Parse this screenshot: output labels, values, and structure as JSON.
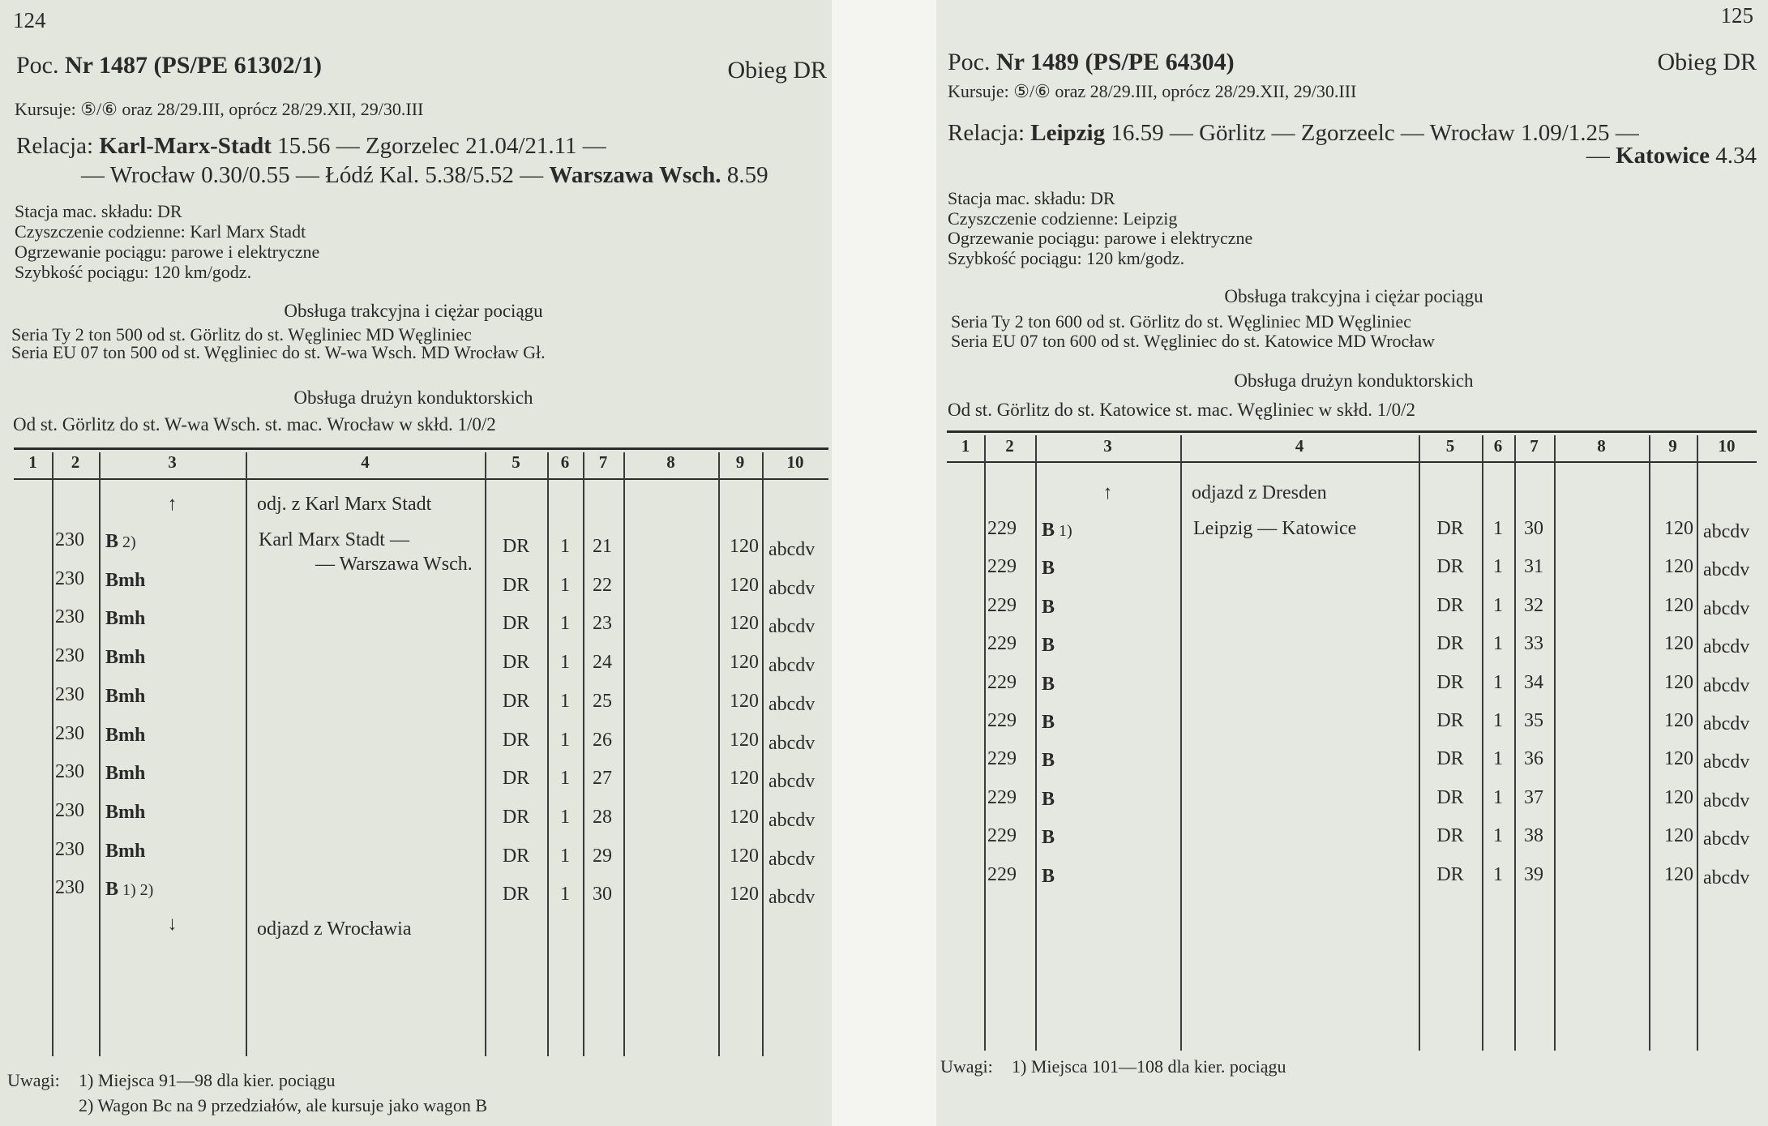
{
  "left": {
    "page_number": "124",
    "title_prefix": "Poc.",
    "title_bold": "Nr 1487 (PS/PE 61302/1)",
    "obieg": "Obieg DR",
    "kursuje": "Kursuje: ⑤/⑥ oraz 28/29.III, oprócz 28/29.XII, 29/30.III",
    "relacja_lines": [
      [
        {
          "t": "Relacja: ",
          "b": false
        },
        {
          "t": "Karl-Marx-Stadt",
          "b": true
        },
        {
          "t": " 15.56 — Zgorzelec ",
          "b": false
        },
        {
          "t": "21.04/21.11 —",
          "b": false
        }
      ],
      [
        {
          "t": "— Wrocław 0.30/0.55 — Łódź Kal. 5.38/5.52 — ",
          "b": false
        },
        {
          "t": "Warszawa Wsch.",
          "b": true
        },
        {
          "t": " 8.59",
          "b": false
        }
      ]
    ],
    "info": [
      "Stacja mac. składu: DR",
      "Czyszczenie codzienne: Karl Marx Stadt",
      "Ogrzewanie pociągu: parowe i elektryczne",
      "Szybkość pociągu: 120 km/godz."
    ],
    "traction_heading": "Obsługa trakcyjna i ciężar pociągu",
    "traction": [
      "Seria Ty 2 ton 500 od st. Görlitz do st. Węgliniec MD Węgliniec",
      "Seria EU 07 ton 500 od st. Węgliniec do st. W-wa Wsch. MD Wrocław Gł."
    ],
    "crew_heading": "Obsługa drużyn konduktorskich",
    "crew": "Od st. Görlitz do st. W-wa Wsch. st. mac. Wrocław w skłd. 1/0/2",
    "table": {
      "headers": [
        "1",
        "2",
        "3",
        "4",
        "5",
        "6",
        "7",
        "8",
        "9",
        "10"
      ],
      "start": {
        "arrow": "↑",
        "text": "odj. z Karl Marx Stadt"
      },
      "rows": [
        {
          "c2": "230",
          "c3": "B",
          "c3n": "2)",
          "c4": [
            "Karl Marx Stadt —",
            "— Warszawa Wsch."
          ],
          "c5": "DR",
          "c6": "1",
          "c7": "21",
          "c9": "120",
          "c10": "abcdv"
        },
        {
          "c2": "230",
          "c3": "Bmh",
          "c3n": "",
          "c4": [],
          "c5": "DR",
          "c6": "1",
          "c7": "22",
          "c9": "120",
          "c10": "abcdv"
        },
        {
          "c2": "230",
          "c3": "Bmh",
          "c3n": "",
          "c4": [],
          "c5": "DR",
          "c6": "1",
          "c7": "23",
          "c9": "120",
          "c10": "abcdv"
        },
        {
          "c2": "230",
          "c3": "Bmh",
          "c3n": "",
          "c4": [],
          "c5": "DR",
          "c6": "1",
          "c7": "24",
          "c9": "120",
          "c10": "abcdv"
        },
        {
          "c2": "230",
          "c3": "Bmh",
          "c3n": "",
          "c4": [],
          "c5": "DR",
          "c6": "1",
          "c7": "25",
          "c9": "120",
          "c10": "abcdv"
        },
        {
          "c2": "230",
          "c3": "Bmh",
          "c3n": "",
          "c4": [],
          "c5": "DR",
          "c6": "1",
          "c7": "26",
          "c9": "120",
          "c10": "abcdv"
        },
        {
          "c2": "230",
          "c3": "Bmh",
          "c3n": "",
          "c4": [],
          "c5": "DR",
          "c6": "1",
          "c7": "27",
          "c9": "120",
          "c10": "abcdv"
        },
        {
          "c2": "230",
          "c3": "Bmh",
          "c3n": "",
          "c4": [],
          "c5": "DR",
          "c6": "1",
          "c7": "28",
          "c9": "120",
          "c10": "abcdv"
        },
        {
          "c2": "230",
          "c3": "Bmh",
          "c3n": "",
          "c4": [],
          "c5": "DR",
          "c6": "1",
          "c7": "29",
          "c9": "120",
          "c10": "abcdv"
        },
        {
          "c2": "230",
          "c3": "B",
          "c3n": "1) 2)",
          "c4": [],
          "c5": "DR",
          "c6": "1",
          "c7": "30",
          "c9": "120",
          "c10": "abcdv"
        }
      ],
      "end": {
        "arrow": "↓",
        "text": "odjazd z Wrocławia"
      }
    },
    "notes_label": "Uwagi:",
    "notes": [
      "1)  Miejsca 91—98 dla kier. pociągu",
      "2)  Wagon Bc na 9 przedziałów, ale kursuje jako wagon B"
    ]
  },
  "right": {
    "page_number": "125",
    "title_prefix": "Poc.",
    "title_bold": "Nr 1489 (PS/PE 64304)",
    "obieg": "Obieg DR",
    "kursuje": "Kursuje: ⑤/⑥ oraz 28/29.III, oprócz 28/29.XII, 29/30.III",
    "relacja_lines": [
      [
        {
          "t": "Relacja: ",
          "b": false
        },
        {
          "t": "Leipzig",
          "b": true
        },
        {
          "t": " 16.59 — Görlitz — Zgorzeelc — Wrocław 1.09/1.25 —",
          "b": false
        }
      ],
      [
        {
          "t": "— ",
          "b": false
        },
        {
          "t": "Katowice",
          "b": true
        },
        {
          "t": " 4.34",
          "b": false
        }
      ]
    ],
    "info": [
      "Stacja mac. składu: DR",
      "Czyszczenie codzienne: Leipzig",
      "Ogrzewanie pociągu: parowe i elektryczne",
      "Szybkość pociągu: 120 km/godz."
    ],
    "traction_heading": "Obsługa trakcyjna i ciężar pociągu",
    "traction": [
      "Seria Ty 2 ton 600 od st. Görlitz do st. Węgliniec MD Węgliniec",
      "Seria EU 07 ton 600 od st. Węgliniec do st. Katowice MD Wrocław"
    ],
    "crew_heading": "Obsługa drużyn konduktorskich",
    "crew": "Od st. Görlitz do st. Katowice st. mac. Węgliniec w skłd. 1/0/2",
    "table": {
      "headers": [
        "1",
        "2",
        "3",
        "4",
        "5",
        "6",
        "7",
        "8",
        "9",
        "10"
      ],
      "start": {
        "arrow": "↑",
        "text": "odjazd z Dresden"
      },
      "rows": [
        {
          "c2": "229",
          "c3": "B",
          "c3n": "1)",
          "c4": [
            "Leipzig — Katowice"
          ],
          "c5": "DR",
          "c6": "1",
          "c7": "30",
          "c9": "120",
          "c10": "abcdv"
        },
        {
          "c2": "229",
          "c3": "B",
          "c3n": "",
          "c4": [],
          "c5": "DR",
          "c6": "1",
          "c7": "31",
          "c9": "120",
          "c10": "abcdv"
        },
        {
          "c2": "229",
          "c3": "B",
          "c3n": "",
          "c4": [],
          "c5": "DR",
          "c6": "1",
          "c7": "32",
          "c9": "120",
          "c10": "abcdv"
        },
        {
          "c2": "229",
          "c3": "B",
          "c3n": "",
          "c4": [],
          "c5": "DR",
          "c6": "1",
          "c7": "33",
          "c9": "120",
          "c10": "abcdv"
        },
        {
          "c2": "229",
          "c3": "B",
          "c3n": "",
          "c4": [],
          "c5": "DR",
          "c6": "1",
          "c7": "34",
          "c9": "120",
          "c10": "abcdv"
        },
        {
          "c2": "229",
          "c3": "B",
          "c3n": "",
          "c4": [],
          "c5": "DR",
          "c6": "1",
          "c7": "35",
          "c9": "120",
          "c10": "abcdv"
        },
        {
          "c2": "229",
          "c3": "B",
          "c3n": "",
          "c4": [],
          "c5": "DR",
          "c6": "1",
          "c7": "36",
          "c9": "120",
          "c10": "abcdv"
        },
        {
          "c2": "229",
          "c3": "B",
          "c3n": "",
          "c4": [],
          "c5": "DR",
          "c6": "1",
          "c7": "37",
          "c9": "120",
          "c10": "abcdv"
        },
        {
          "c2": "229",
          "c3": "B",
          "c3n": "",
          "c4": [],
          "c5": "DR",
          "c6": "1",
          "c7": "38",
          "c9": "120",
          "c10": "abcdv"
        },
        {
          "c2": "229",
          "c3": "B",
          "c3n": "",
          "c4": [],
          "c5": "DR",
          "c6": "1",
          "c7": "39",
          "c9": "120",
          "c10": "abcdv"
        }
      ]
    },
    "notes_label": "Uwagi:",
    "notes": [
      "1)  Miejsca 101—108 dla kier. pociągu"
    ]
  }
}
